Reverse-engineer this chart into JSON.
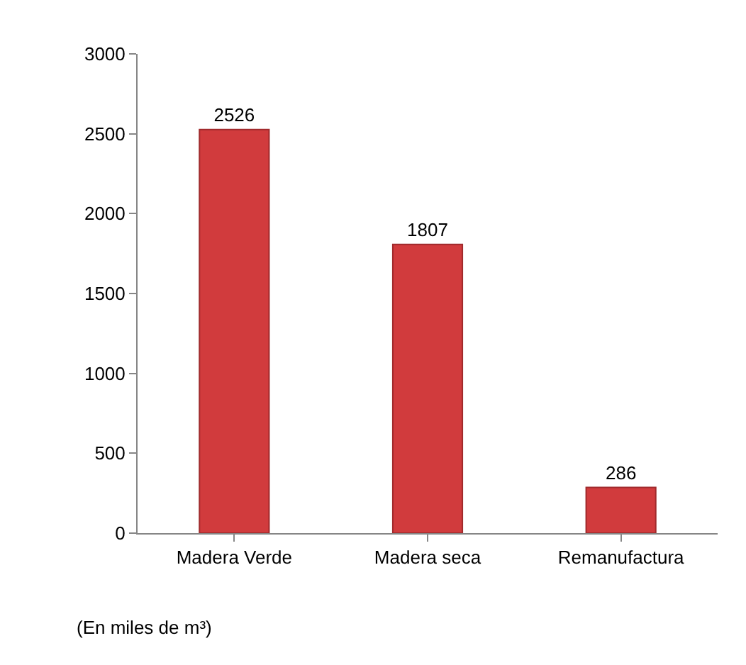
{
  "chart_data": {
    "type": "bar",
    "categories": [
      "Madera Verde",
      "Madera seca",
      "Remanufactura"
    ],
    "values": [
      2526,
      1807,
      286
    ],
    "color": "#d13b3d",
    "ylim": [
      0,
      3000
    ],
    "yticks": [
      0,
      500,
      1000,
      1500,
      2000,
      2500,
      3000
    ],
    "data_labels": true,
    "annotations": [
      "(En miles de m³)"
    ]
  }
}
